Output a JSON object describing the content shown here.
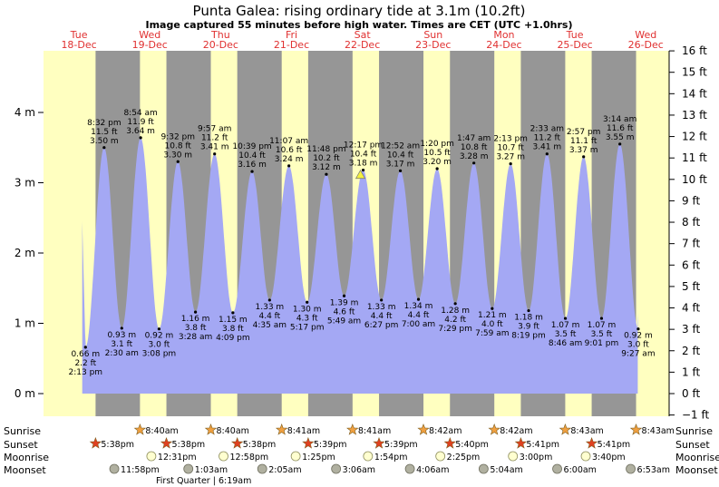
{
  "title": "Punta Galea: rising  ordinary tide at 3.1m (10.2ft)",
  "subtitle": "Image captured 55 minutes before high water. Times are CET (UTC +1.0hrs)",
  "days": [
    {
      "dow": "Tue",
      "date": "18-Dec"
    },
    {
      "dow": "Wed",
      "date": "19-Dec"
    },
    {
      "dow": "Thu",
      "date": "20-Dec"
    },
    {
      "dow": "Fri",
      "date": "21-Dec"
    },
    {
      "dow": "Sat",
      "date": "22-Dec"
    },
    {
      "dow": "Sun",
      "date": "23-Dec"
    },
    {
      "dow": "Mon",
      "date": "24-Dec"
    },
    {
      "dow": "Tue",
      "date": "25-Dec"
    },
    {
      "dow": "Wed",
      "date": "26-Dec"
    }
  ],
  "chart_data": {
    "type": "area",
    "x_unit": "hours from 00:00 Tue 18-Dec (CET)",
    "x_range": [
      0,
      199
    ],
    "y_unit": "m",
    "y_range": [
      -0.15,
      4.8
    ],
    "left_ticks": [
      "0 m",
      "1 m",
      "2 m",
      "3 m",
      "4 m"
    ],
    "right_ticks": [
      "−1 ft",
      "0 ft",
      "1 ft",
      "2 ft",
      "3 ft",
      "4 ft",
      "5 ft",
      "6 ft",
      "7 ft",
      "8 ft",
      "9 ft",
      "10 ft",
      "11 ft",
      "12 ft",
      "13 ft",
      "14 ft",
      "15 ft",
      "16 ft"
    ],
    "tide_extremes": [
      {
        "kind": "low",
        "h": 14.22,
        "m": 0.66,
        "time": "2:13 pm",
        "m_label": "0.66 m",
        "ft_label": "2.2 ft"
      },
      {
        "kind": "high",
        "h": 20.53,
        "m": 3.5,
        "time": "8:32 pm",
        "m_label": "3.50 m",
        "ft_label": "11.5 ft"
      },
      {
        "kind": "low",
        "h": 26.5,
        "m": 0.93,
        "time": "2:30 am",
        "m_label": "0.93 m",
        "ft_label": "3.1 ft"
      },
      {
        "kind": "high",
        "h": 32.9,
        "m": 3.64,
        "time": "8:54 am",
        "m_label": "3.64 m",
        "ft_label": "11.9 ft"
      },
      {
        "kind": "low",
        "h": 39.13,
        "m": 0.92,
        "time": "3:08 pm",
        "m_label": "0.92 m",
        "ft_label": "3.0 ft"
      },
      {
        "kind": "high",
        "h": 45.53,
        "m": 3.3,
        "time": "9:32 pm",
        "m_label": "3.30 m",
        "ft_label": "10.8 ft"
      },
      {
        "kind": "low",
        "h": 51.47,
        "m": 1.16,
        "time": "3:28 am",
        "m_label": "1.16 m",
        "ft_label": "3.8 ft"
      },
      {
        "kind": "high",
        "h": 57.95,
        "m": 3.41,
        "time": "9:57 am",
        "m_label": "3.41 m",
        "ft_label": "11.2 ft"
      },
      {
        "kind": "low",
        "h": 64.15,
        "m": 1.15,
        "time": "4:09 pm",
        "m_label": "1.15 m",
        "ft_label": "3.8 ft"
      },
      {
        "kind": "high",
        "h": 70.65,
        "m": 3.16,
        "time": "10:39 pm",
        "m_label": "3.16 m",
        "ft_label": "10.4 ft"
      },
      {
        "kind": "low",
        "h": 76.58,
        "m": 1.33,
        "time": "4:35 am",
        "m_label": "1.33 m",
        "ft_label": "4.4 ft"
      },
      {
        "kind": "high",
        "h": 83.12,
        "m": 3.24,
        "time": "11:07 am",
        "m_label": "3.24 m",
        "ft_label": "10.6 ft"
      },
      {
        "kind": "low",
        "h": 89.28,
        "m": 1.3,
        "time": "5:17 pm",
        "m_label": "1.30 m",
        "ft_label": "4.3 ft"
      },
      {
        "kind": "high",
        "h": 95.8,
        "m": 3.12,
        "time": "11:48 pm",
        "m_label": "3.12 m",
        "ft_label": "10.2 ft"
      },
      {
        "kind": "low",
        "h": 101.82,
        "m": 1.39,
        "time": "5:49 am",
        "m_label": "1.39 m",
        "ft_label": "4.6 ft"
      },
      {
        "kind": "high",
        "h": 108.28,
        "m": 3.18,
        "time": "12:17 pm",
        "m_label": "3.18 m",
        "ft_label": "10.4 ft"
      },
      {
        "kind": "low",
        "h": 114.45,
        "m": 1.33,
        "time": "6:27 pm",
        "m_label": "1.33 m",
        "ft_label": "4.4 ft"
      },
      {
        "kind": "high",
        "h": 120.87,
        "m": 3.17,
        "time": "12:52 am",
        "m_label": "3.17 m",
        "ft_label": "10.4 ft"
      },
      {
        "kind": "low",
        "h": 127.0,
        "m": 1.34,
        "time": "7:00 am",
        "m_label": "1.34 m",
        "ft_label": "4.4 ft"
      },
      {
        "kind": "high",
        "h": 133.33,
        "m": 3.2,
        "time": "1:20 pm",
        "m_label": "3.20 m",
        "ft_label": "10.5 ft"
      },
      {
        "kind": "low",
        "h": 139.48,
        "m": 1.28,
        "time": "7:29 pm",
        "m_label": "1.28 m",
        "ft_label": "4.2 ft"
      },
      {
        "kind": "high",
        "h": 145.78,
        "m": 3.28,
        "time": "1:47 am",
        "m_label": "3.28 m",
        "ft_label": "10.8 ft"
      },
      {
        "kind": "low",
        "h": 151.98,
        "m": 1.21,
        "time": "7:59 am",
        "m_label": "1.21 m",
        "ft_label": "4.0 ft"
      },
      {
        "kind": "high",
        "h": 158.22,
        "m": 3.27,
        "time": "2:13 pm",
        "m_label": "3.27 m",
        "ft_label": "10.7 ft"
      },
      {
        "kind": "low",
        "h": 164.32,
        "m": 1.18,
        "time": "8:19 pm",
        "m_label": "1.18 m",
        "ft_label": "3.9 ft"
      },
      {
        "kind": "high",
        "h": 170.55,
        "m": 3.41,
        "time": "2:33 am",
        "m_label": "3.41 m",
        "ft_label": "11.2 ft"
      },
      {
        "kind": "low",
        "h": 176.77,
        "m": 1.07,
        "time": "8:46 am",
        "m_label": "1.07 m",
        "ft_label": "3.5 ft"
      },
      {
        "kind": "high",
        "h": 182.95,
        "m": 3.37,
        "time": "2:57 pm",
        "m_label": "3.37 m",
        "ft_label": "11.1 ft"
      },
      {
        "kind": "low",
        "h": 189.02,
        "m": 1.07,
        "time": "9:01 pm",
        "m_label": "1.07 m",
        "ft_label": "3.5 ft"
      },
      {
        "kind": "high",
        "h": 195.23,
        "m": 3.55,
        "time": "3:14 am",
        "m_label": "3.55 m",
        "ft_label": "11.6 ft"
      },
      {
        "kind": "low",
        "h": 201.45,
        "m": 0.92,
        "time": "9:27 am",
        "m_label": "0.92 m",
        "ft_label": "3.0 ft"
      }
    ],
    "current": {
      "h": 107.35,
      "m": 3.1
    },
    "sunrise": [
      {
        "h": 32.67,
        "label": "8:40am"
      },
      {
        "h": 56.67,
        "label": "8:40am"
      },
      {
        "h": 80.68,
        "label": "8:41am"
      },
      {
        "h": 104.68,
        "label": "8:41am"
      },
      {
        "h": 128.7,
        "label": "8:42am"
      },
      {
        "h": 152.7,
        "label": "8:42am"
      },
      {
        "h": 176.72,
        "label": "8:43am"
      },
      {
        "h": 200.72,
        "label": "8:43am"
      }
    ],
    "sunset": [
      {
        "h": 17.63,
        "label": "5:38pm"
      },
      {
        "h": 41.63,
        "label": "5:38pm"
      },
      {
        "h": 65.63,
        "label": "5:38pm"
      },
      {
        "h": 89.65,
        "label": "5:39pm"
      },
      {
        "h": 113.65,
        "label": "5:39pm"
      },
      {
        "h": 137.67,
        "label": "5:40pm"
      },
      {
        "h": 161.68,
        "label": "5:41pm"
      },
      {
        "h": 185.68,
        "label": "5:41pm"
      }
    ],
    "moonrise": [
      {
        "h": 36.52,
        "label": "12:31pm"
      },
      {
        "h": 60.97,
        "label": "12:58pm"
      },
      {
        "h": 85.42,
        "label": "1:25pm"
      },
      {
        "h": 109.9,
        "label": "1:54pm"
      },
      {
        "h": 134.42,
        "label": "2:25pm"
      },
      {
        "h": 159.0,
        "label": "3:00pm"
      },
      {
        "h": 183.67,
        "label": "3:40pm"
      }
    ],
    "moonset": [
      {
        "h": 23.97,
        "label": "11:58pm"
      },
      {
        "h": 49.05,
        "label": "1:03am"
      },
      {
        "h": 74.08,
        "label": "2:05am"
      },
      {
        "h": 99.1,
        "label": "3:06am"
      },
      {
        "h": 124.1,
        "label": "4:06am"
      },
      {
        "h": 149.07,
        "label": "5:04am"
      },
      {
        "h": 174.0,
        "label": "6:00am"
      },
      {
        "h": 198.88,
        "label": "6:53am"
      }
    ],
    "moon_phase": {
      "label": "First Quarter | 6:19am"
    }
  },
  "rows": {
    "sunrise": "Sunrise",
    "sunset": "Sunset",
    "moonrise": "Moonrise",
    "moonset": "Moonset"
  },
  "colors": {
    "day": "#ffffc0",
    "night": "#969696",
    "water": "#a4a8f4",
    "day_label": "#e03030",
    "sun": "#f0a040",
    "sunset": "#e04020",
    "moonrise": "#ffffd0",
    "moonset": "#b0b0a0"
  }
}
